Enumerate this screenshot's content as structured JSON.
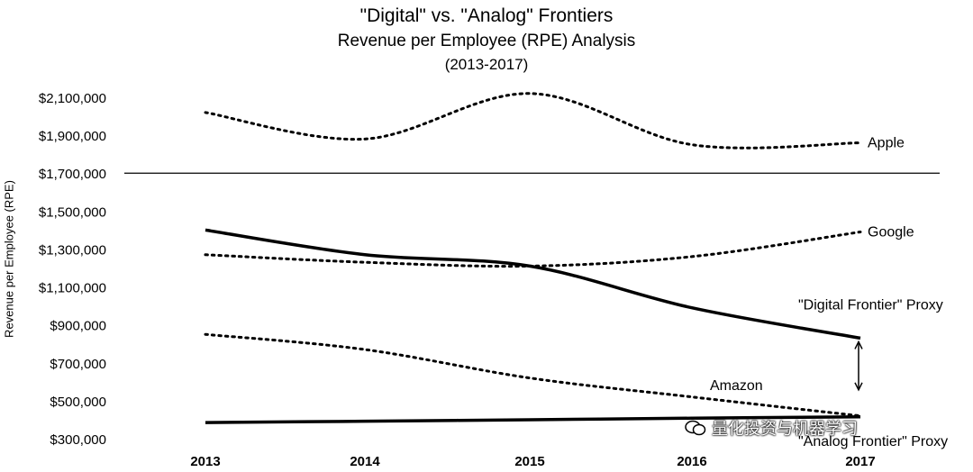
{
  "chart_data": {
    "type": "line",
    "title": "\"Digital\" vs. \"Analog\" Frontiers",
    "subtitle": "Revenue per Employee (RPE) Analysis",
    "date_range": "(2013-2017)",
    "xlabel": "",
    "ylabel": "Revenue per Employee (RPE)",
    "x": [
      "2013",
      "2014",
      "2015",
      "2016",
      "2017"
    ],
    "ylim": [
      300000,
      2100000
    ],
    "yticks": [
      "$2,100,000",
      "$1,900,000",
      "$1,700,000",
      "$1,500,000",
      "$1,300,000",
      "$1,100,000",
      "$900,000",
      "$700,000",
      "$500,000",
      "$300,000"
    ],
    "ytick_values": [
      2100000,
      1900000,
      1700000,
      1500000,
      1300000,
      1100000,
      900000,
      700000,
      500000,
      300000
    ],
    "reference_line": 1700000,
    "series": [
      {
        "name": "Apple",
        "style": "dotted",
        "values": [
          2020000,
          1880000,
          2120000,
          1850000,
          1860000
        ]
      },
      {
        "name": "Google",
        "style": "dotted",
        "values": [
          1270000,
          1230000,
          1210000,
          1260000,
          1390000
        ]
      },
      {
        "name": "\"Digital Frontier\" Proxy",
        "style": "solid",
        "values": [
          1400000,
          1270000,
          1210000,
          990000,
          830000
        ]
      },
      {
        "name": "Amazon",
        "style": "dotted",
        "values": [
          850000,
          770000,
          620000,
          520000,
          420000
        ]
      },
      {
        "name": "\"Analog Frontier\" Proxy",
        "style": "solid",
        "values": [
          385000,
          392000,
          400000,
          408000,
          415000
        ]
      }
    ],
    "grid": false,
    "legend": "inline labels at line ends",
    "watermark": "量化投资与机器学习"
  }
}
